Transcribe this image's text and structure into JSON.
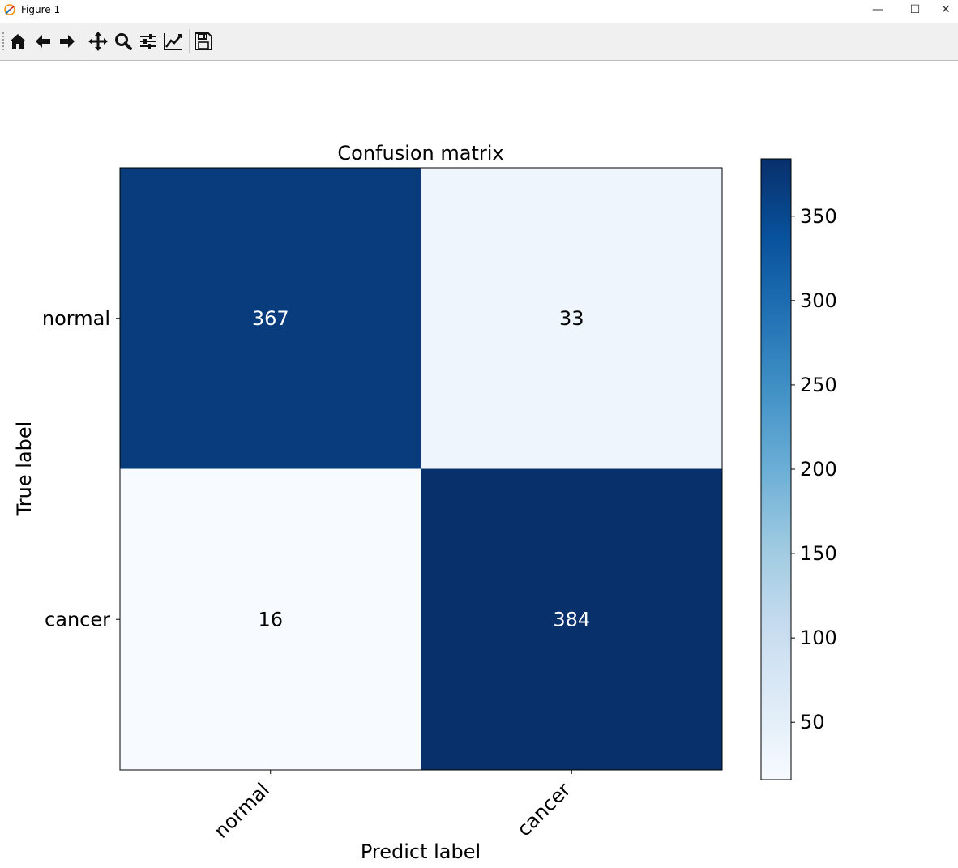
{
  "window": {
    "title": "Figure 1",
    "minimize": "—",
    "maximize": "☐",
    "close": "✕"
  },
  "toolbar": {
    "buttons": [
      {
        "name": "home-icon",
        "tooltip": "Reset original view"
      },
      {
        "name": "back-arrow-icon",
        "tooltip": "Back to previous view"
      },
      {
        "name": "forward-arrow-icon",
        "tooltip": "Forward to next view"
      },
      {
        "name": "pan-icon",
        "tooltip": "Pan axes"
      },
      {
        "name": "zoom-icon",
        "tooltip": "Zoom to rectangle"
      },
      {
        "name": "subplots-icon",
        "tooltip": "Configure subplots"
      },
      {
        "name": "edit-axis-icon",
        "tooltip": "Edit axis"
      },
      {
        "name": "save-icon",
        "tooltip": "Save the figure"
      }
    ]
  },
  "chart_data": {
    "type": "heatmap",
    "title": "Confusion matrix",
    "xlabel": "Predict label",
    "ylabel": "True label",
    "x_categories": [
      "normal",
      "cancer"
    ],
    "y_categories": [
      "normal",
      "cancer"
    ],
    "values": [
      [
        367,
        33
      ],
      [
        16,
        384
      ]
    ],
    "colormap": "Blues",
    "colorbar": {
      "min": 16,
      "max": 384,
      "ticks": [
        50,
        100,
        150,
        200,
        250,
        300,
        350
      ]
    },
    "text_colors": {
      "dark_cell": "#ffffff",
      "light_cell": "#000000"
    },
    "grid": false
  }
}
